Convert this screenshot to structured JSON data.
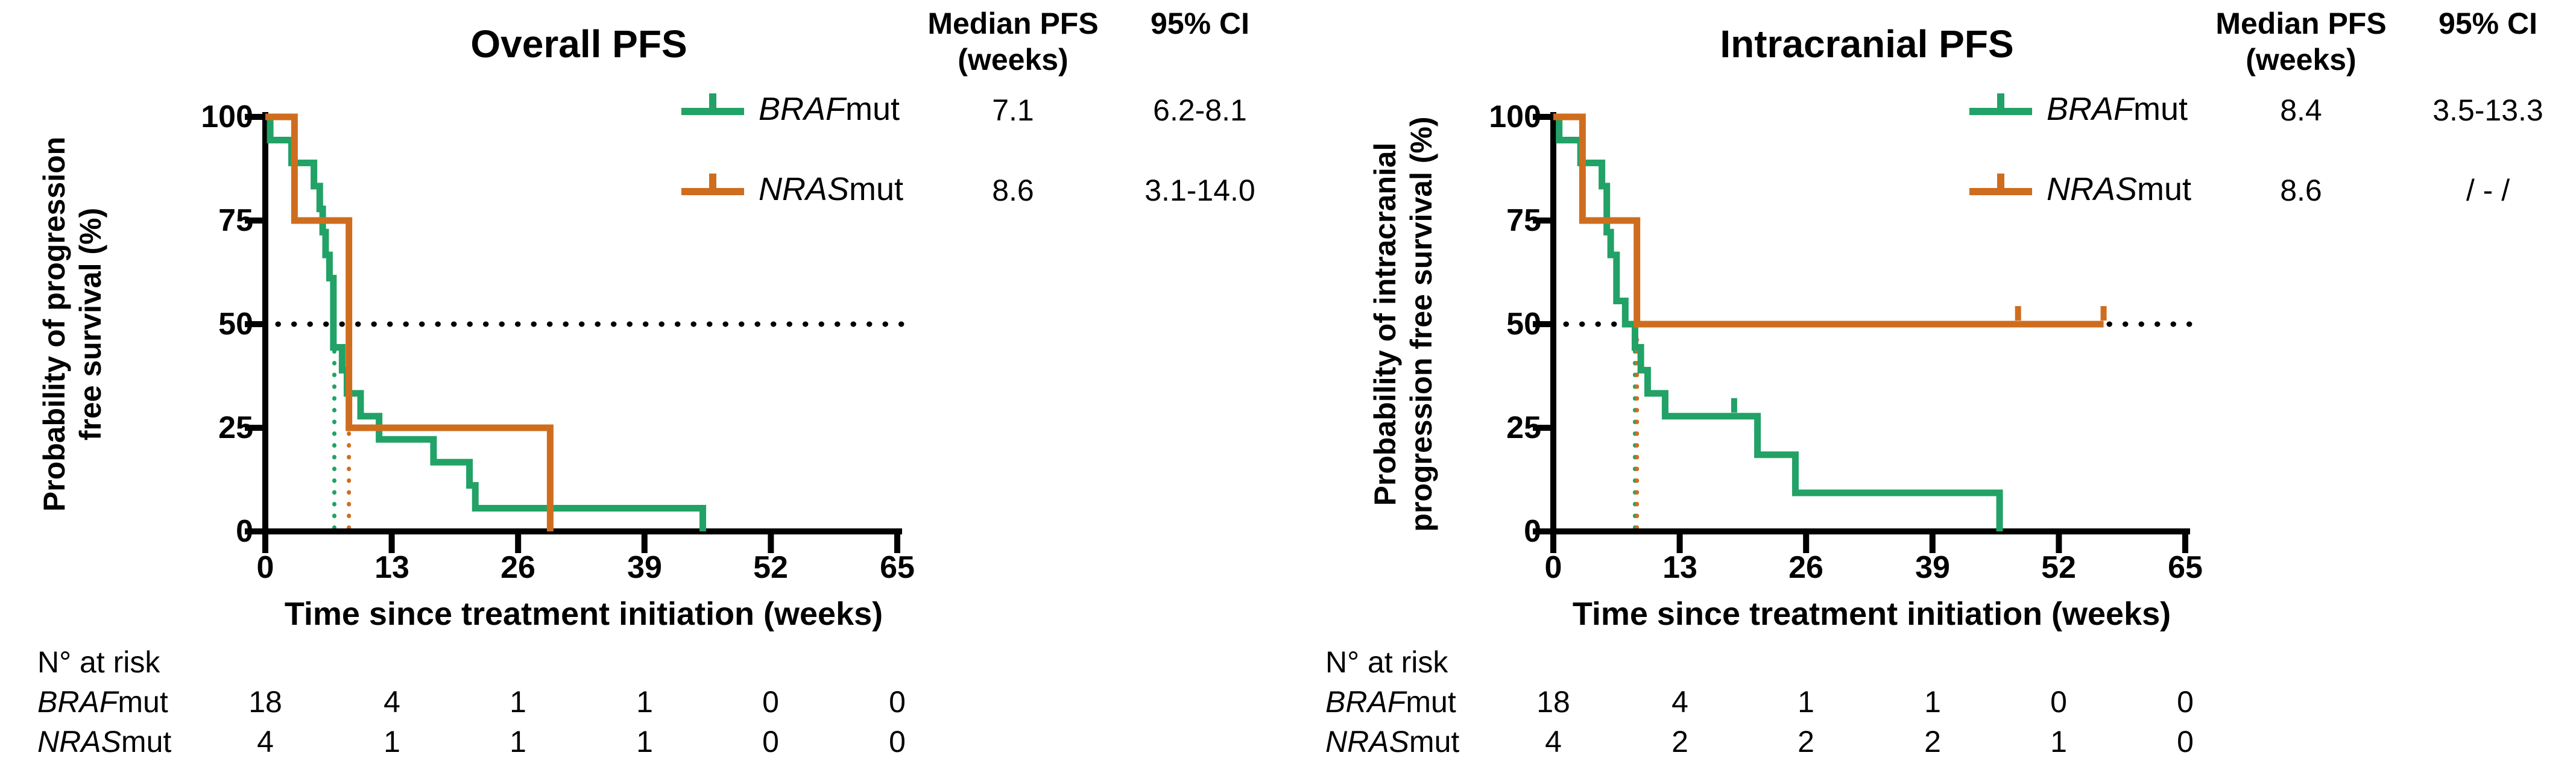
{
  "colors": {
    "braf": "#22A266",
    "nras": "#CF6D1E",
    "axis": "#000000",
    "background": "#FFFFFF"
  },
  "axis_ticks": {
    "x_labels": [
      "0",
      "13",
      "26",
      "39",
      "52",
      "65"
    ],
    "y_labels": [
      "100",
      "75",
      "50",
      "25",
      "0"
    ]
  },
  "panels": [
    {
      "title": "Overall PFS",
      "ylabel_line1": "Probability of progression",
      "ylabel_line2": "free survival (%)",
      "xlabel": "Time since treatment initiation (weeks)",
      "stats": {
        "header_median": "Median PFS",
        "header_median_sub": "(weeks)",
        "header_ci": "95% CI",
        "rows": [
          {
            "gene": "BRAF",
            "suffix": "mut",
            "median": "7.1",
            "ci": "6.2-8.1"
          },
          {
            "gene": "NRAS",
            "suffix": "mut",
            "median": "8.6",
            "ci": "3.1-14.0"
          }
        ]
      },
      "risk": {
        "label": "N° at risk",
        "rows": [
          {
            "gene": "BRAF",
            "suffix": "mut",
            "values": [
              "18",
              "4",
              "1",
              "1",
              "0",
              "0"
            ]
          },
          {
            "gene": "NRAS",
            "suffix": "mut",
            "values": [
              "4",
              "1",
              "1",
              "1",
              "0",
              "0"
            ]
          }
        ]
      }
    },
    {
      "title": "Intracranial PFS",
      "ylabel_line1": "Probability of intracranial",
      "ylabel_line2": "progression free survival (%)",
      "xlabel": "Time since treatment initiation (weeks)",
      "stats": {
        "header_median": "Median PFS",
        "header_median_sub": "(weeks)",
        "header_ci": "95% CI",
        "rows": [
          {
            "gene": "BRAF",
            "suffix": "mut",
            "median": "8.4",
            "ci": "3.5-13.3"
          },
          {
            "gene": "NRAS",
            "suffix": "mut",
            "median": "8.6",
            "ci": "/ - /"
          }
        ]
      },
      "risk": {
        "label": "N° at risk",
        "rows": [
          {
            "gene": "BRAF",
            "suffix": "mut",
            "values": [
              "18",
              "4",
              "1",
              "1",
              "0",
              "0"
            ]
          },
          {
            "gene": "NRAS",
            "suffix": "mut",
            "values": [
              "4",
              "2",
              "2",
              "2",
              "1",
              "0"
            ]
          }
        ]
      }
    }
  ],
  "chart_data": [
    {
      "type": "line",
      "subtype": "kaplan_meier_step",
      "title": "Overall PFS",
      "xlabel": "Time since treatment initiation (weeks)",
      "ylabel": "Probability of progression free survival (%)",
      "xlim": [
        0,
        65
      ],
      "ylim": [
        0,
        100
      ],
      "xticks": [
        0,
        13,
        26,
        39,
        52,
        65
      ],
      "yticks": [
        0,
        25,
        50,
        75,
        100
      ],
      "grid": false,
      "legend_position": "right-of-plot",
      "reference_line_y": 50,
      "median_guides": [
        {
          "x": 7.1,
          "color": "#22A266"
        },
        {
          "x": 8.6,
          "color": "#CF6D1E"
        }
      ],
      "series": [
        {
          "name": "BRAFmut",
          "color": "#22A266",
          "median_pfs_weeks": 7.1,
          "ci_95": "6.2-8.1",
          "points": [
            [
              0,
              100
            ],
            [
              0.5,
              100
            ],
            [
              0.5,
              94.4
            ],
            [
              2.7,
              94.4
            ],
            [
              2.7,
              88.9
            ],
            [
              5.0,
              88.9
            ],
            [
              5.0,
              83.3
            ],
            [
              5.6,
              83.3
            ],
            [
              5.6,
              77.8
            ],
            [
              5.9,
              77.8
            ],
            [
              5.9,
              72.2
            ],
            [
              6.2,
              72.2
            ],
            [
              6.2,
              66.7
            ],
            [
              6.6,
              66.7
            ],
            [
              6.6,
              61.1
            ],
            [
              7.0,
              61.1
            ],
            [
              7.0,
              44.4
            ],
            [
              7.9,
              44.4
            ],
            [
              7.9,
              38.9
            ],
            [
              8.4,
              38.9
            ],
            [
              8.4,
              33.3
            ],
            [
              9.8,
              33.3
            ],
            [
              9.8,
              27.8
            ],
            [
              11.7,
              27.8
            ],
            [
              11.7,
              22.2
            ],
            [
              17.3,
              22.2
            ],
            [
              17.3,
              16.7
            ],
            [
              21.0,
              16.7
            ],
            [
              21.0,
              11.1
            ],
            [
              21.6,
              11.1
            ],
            [
              21.6,
              5.6
            ],
            [
              45.0,
              5.6
            ],
            [
              45.0,
              0
            ]
          ],
          "censor_ticks": []
        },
        {
          "name": "NRASmut",
          "color": "#CF6D1E",
          "median_pfs_weeks": 8.6,
          "ci_95": "3.1-14.0",
          "points": [
            [
              0,
              100
            ],
            [
              3.0,
              100
            ],
            [
              3.0,
              75
            ],
            [
              8.6,
              75
            ],
            [
              8.6,
              25
            ],
            [
              29.3,
              25
            ],
            [
              29.3,
              0
            ]
          ],
          "censor_ticks": []
        }
      ],
      "n_at_risk": {
        "times": [
          0,
          13,
          26,
          39,
          52,
          65
        ],
        "BRAFmut": [
          18,
          4,
          1,
          1,
          0,
          0
        ],
        "NRASmut": [
          4,
          1,
          1,
          1,
          0,
          0
        ]
      }
    },
    {
      "type": "line",
      "subtype": "kaplan_meier_step",
      "title": "Intracranial PFS",
      "xlabel": "Time since treatment initiation (weeks)",
      "ylabel": "Probability of intracranial progression free survival (%)",
      "xlim": [
        0,
        65
      ],
      "ylim": [
        0,
        100
      ],
      "xticks": [
        0,
        13,
        26,
        39,
        52,
        65
      ],
      "yticks": [
        0,
        25,
        50,
        75,
        100
      ],
      "grid": false,
      "legend_position": "right-of-plot",
      "reference_line_y": 50,
      "median_guides": [
        {
          "x": 8.4,
          "color": "#22A266"
        },
        {
          "x": 8.6,
          "color": "#CF6D1E"
        }
      ],
      "series": [
        {
          "name": "BRAFmut",
          "color": "#22A266",
          "median_pfs_weeks": 8.4,
          "ci_95": "3.5-13.3",
          "points": [
            [
              0,
              100
            ],
            [
              0.6,
              100
            ],
            [
              0.6,
              94.4
            ],
            [
              2.8,
              94.4
            ],
            [
              2.8,
              88.9
            ],
            [
              5.0,
              88.9
            ],
            [
              5.0,
              83.3
            ],
            [
              5.5,
              83.3
            ],
            [
              5.5,
              72.2
            ],
            [
              5.9,
              72.2
            ],
            [
              5.9,
              66.7
            ],
            [
              6.5,
              66.7
            ],
            [
              6.5,
              55.6
            ],
            [
              7.4,
              55.6
            ],
            [
              7.4,
              50
            ],
            [
              8.4,
              50
            ],
            [
              8.4,
              44.4
            ],
            [
              9.0,
              44.4
            ],
            [
              9.0,
              38.9
            ],
            [
              9.7,
              38.9
            ],
            [
              9.7,
              33.3
            ],
            [
              11.5,
              33.3
            ],
            [
              11.5,
              27.8
            ],
            [
              21.0,
              27.8
            ],
            [
              21.0,
              18.5
            ],
            [
              24.9,
              18.5
            ],
            [
              24.9,
              9.3
            ],
            [
              45.9,
              9.3
            ],
            [
              45.9,
              0
            ]
          ],
          "censor_ticks": [
            [
              18.6,
              27.8
            ]
          ]
        },
        {
          "name": "NRASmut",
          "color": "#CF6D1E",
          "median_pfs_weeks": 8.6,
          "ci_95": "/ - /",
          "points": [
            [
              0,
              100
            ],
            [
              3.0,
              100
            ],
            [
              3.0,
              75
            ],
            [
              8.6,
              75
            ],
            [
              8.6,
              50
            ],
            [
              56.6,
              50
            ]
          ],
          "censor_ticks": [
            [
              47.8,
              50
            ],
            [
              56.6,
              50
            ]
          ]
        }
      ],
      "n_at_risk": {
        "times": [
          0,
          13,
          26,
          39,
          52,
          65
        ],
        "BRAFmut": [
          18,
          4,
          1,
          1,
          0,
          0
        ],
        "NRASmut": [
          4,
          2,
          2,
          2,
          1,
          0
        ]
      }
    }
  ]
}
